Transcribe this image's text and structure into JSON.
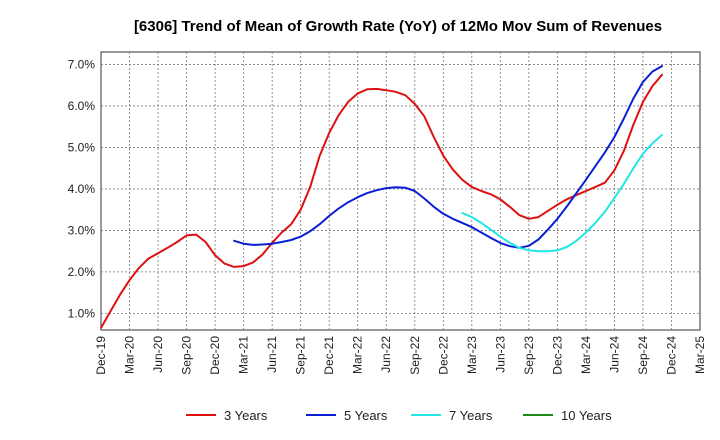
{
  "chart_data": {
    "type": "line",
    "title": "[6306]  Trend of Mean of Growth Rate (YoY) of 12Mo Mov Sum of Revenues",
    "xlabel": "",
    "ylabel": "",
    "ylim": [
      0.6,
      7.3
    ],
    "yticks": [
      1.0,
      2.0,
      3.0,
      4.0,
      5.0,
      6.0,
      7.0
    ],
    "ytick_labels": [
      "1.0%",
      "2.0%",
      "3.0%",
      "4.0%",
      "5.0%",
      "6.0%",
      "7.0%"
    ],
    "x_labels": [
      "Dec-19",
      "Mar-20",
      "Jun-20",
      "Sep-20",
      "Dec-20",
      "Mar-21",
      "Jun-21",
      "Sep-21",
      "Dec-21",
      "Mar-22",
      "Jun-22",
      "Sep-22",
      "Dec-22",
      "Mar-23",
      "Jun-23",
      "Sep-23",
      "Dec-23",
      "Mar-24",
      "Jun-24",
      "Sep-24",
      "Dec-24",
      "Mar-25"
    ],
    "grid": true,
    "legend_position": "bottom",
    "series": [
      {
        "name": "3 Years",
        "color": "#dd1111",
        "start_index": 0,
        "values": [
          0.65,
          1.05,
          1.45,
          1.8,
          2.1,
          2.32,
          2.45,
          2.58,
          2.72,
          2.88,
          2.9,
          2.72,
          2.4,
          2.2,
          2.12,
          2.14,
          2.23,
          2.42,
          2.7,
          2.95,
          3.15,
          3.5,
          4.05,
          4.8,
          5.35,
          5.78,
          6.1,
          6.3,
          6.4,
          6.41,
          6.38,
          6.34,
          6.26,
          6.05,
          5.75,
          5.25,
          4.8,
          4.47,
          4.22,
          4.05,
          3.95,
          3.87,
          3.75,
          3.57,
          3.37,
          3.28,
          3.32,
          3.47,
          3.62,
          3.75,
          3.85,
          3.95,
          4.05,
          4.15,
          4.45,
          4.92,
          5.55,
          6.1,
          6.48,
          6.75
        ]
      },
      {
        "name": "5 Years",
        "color": "#0a1ed2",
        "start_index": 14,
        "values": [
          2.75,
          2.68,
          2.65,
          2.66,
          2.68,
          2.72,
          2.77,
          2.85,
          2.98,
          3.15,
          3.35,
          3.53,
          3.68,
          3.8,
          3.9,
          3.97,
          4.02,
          4.04,
          4.03,
          3.95,
          3.77,
          3.57,
          3.4,
          3.28,
          3.18,
          3.08,
          2.95,
          2.82,
          2.7,
          2.62,
          2.58,
          2.63,
          2.78,
          3.02,
          3.28,
          3.58,
          3.9,
          4.22,
          4.55,
          4.88,
          5.25,
          5.7,
          6.18,
          6.58,
          6.83,
          6.96
        ]
      },
      {
        "name": "7 Years",
        "color": "#22e6e6",
        "start_index": 38,
        "values": [
          3.42,
          3.32,
          3.18,
          3.02,
          2.85,
          2.7,
          2.58,
          2.52,
          2.5,
          2.5,
          2.52,
          2.6,
          2.75,
          2.95,
          3.18,
          3.45,
          3.78,
          4.12,
          4.5,
          4.85,
          5.1,
          5.3
        ]
      },
      {
        "name": "10 Years",
        "color": "#1a8a1a",
        "start_index": 0,
        "values": []
      }
    ]
  }
}
